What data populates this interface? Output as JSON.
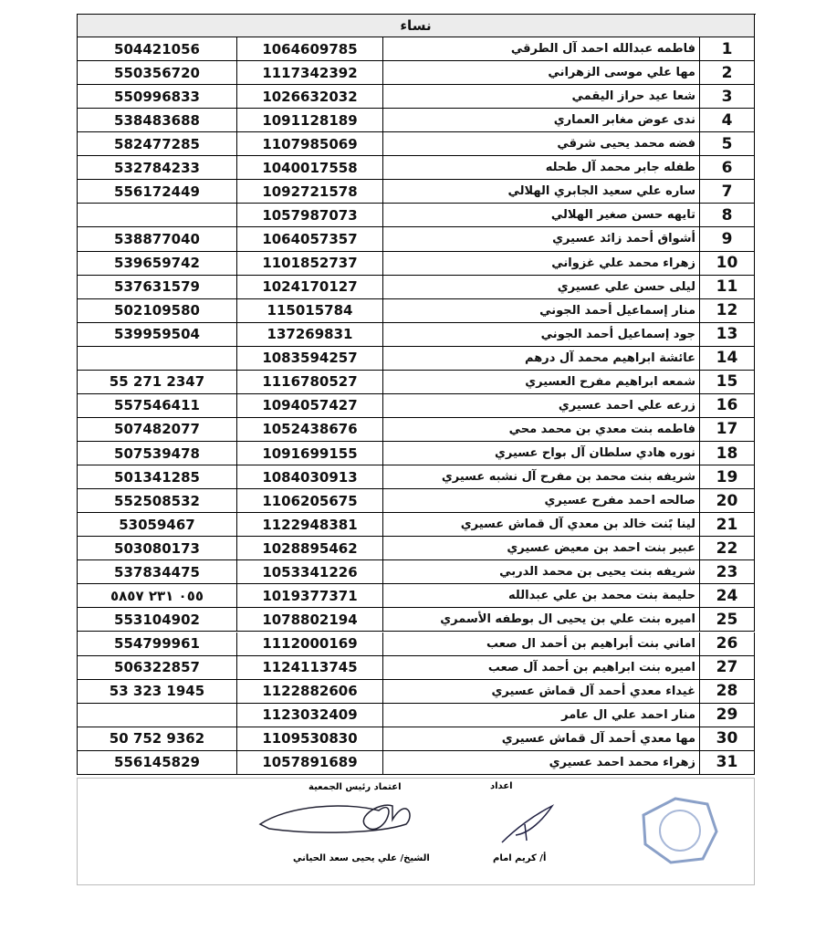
{
  "table": {
    "header": "نساء",
    "rows": [
      [
        1,
        "فاطمه عبدالله احمد آل الطرقي",
        "1064609785",
        "504421056"
      ],
      [
        2,
        "مها علي موسى الزهراني",
        "1117342392",
        "550356720"
      ],
      [
        3,
        "شعا عيد حراز اليقمي",
        "1026632032",
        "550996833"
      ],
      [
        4,
        "ندى عوض مغابر العماري",
        "1091128189",
        "538483688"
      ],
      [
        5,
        "فضه محمد يحيى شرقي",
        "1107985069",
        "582477285"
      ],
      [
        6,
        "طفله جابر محمد آل طحله",
        "1040017558",
        "532784233"
      ],
      [
        7,
        "ساره علي سعيد الجابري الهلالي",
        "1092721578",
        "556172449"
      ],
      [
        8,
        "تايهه حسن صغير الهلالي",
        "1057987073",
        null
      ],
      [
        9,
        "أشواق أحمد زائد عسيري",
        "1064057357",
        "538877040"
      ],
      [
        10,
        "زهراء محمد علي غزواني",
        "1101852737",
        "539659742"
      ],
      [
        11,
        "ليلى حسن علي عسيري",
        "1024170127",
        "537631579"
      ],
      [
        12,
        "منار إسماعيل أحمد الجوني",
        "115015784",
        "502109580"
      ],
      [
        13,
        "جود إسماعيل أحمد الجوني",
        "137269831",
        "539959504"
      ],
      [
        14,
        "عائشة ابراهيم محمد آل درهم",
        "1083594257",
        null
      ],
      [
        15,
        "شمعه ابراهيم مفرح العسيري",
        "1116780527",
        "55 271 2347"
      ],
      [
        16,
        "زرعه علي احمد عسيري",
        "1094057427",
        "557546411"
      ],
      [
        17,
        "فاطمه بنت معدي بن محمد محي",
        "1052438676",
        "507482077"
      ],
      [
        18,
        "نوره هادي سلطان آل بواح عسيري",
        "1091699155",
        "507539478"
      ],
      [
        19,
        "شريفه بنت محمد بن مفرح آل نشبه عسيري",
        "1084030913",
        "501341285"
      ],
      [
        20,
        "صالحه احمد مفرح عسيري",
        "1106205675",
        "552508532"
      ],
      [
        21,
        "لينا بًنت خالد بن معدي آل قماش عسيري",
        "1122948381",
        "53059467"
      ],
      [
        22,
        "عبير بنت احمد بن معيض عسيري",
        "1028895462",
        "503080173"
      ],
      [
        23,
        "شريفه بنت يحيى بن محمد الدربي",
        "1053341226",
        "537834475"
      ],
      [
        24,
        "حليمة بنت محمد بن علي عبدالله",
        "1019377371",
        "٠٥٥ ٢٣١ ٥٨٥٧"
      ],
      [
        25,
        "اميره بنت  علي بن يحيى ال بوطفه الأسمري",
        "1078802194",
        "553104902"
      ],
      [
        26,
        "اماني بنت أبراهيم بن أحمد ال صعب",
        "1112000169",
        "554799961"
      ],
      [
        27,
        "اميره بنت ابراهيم بن أحمد آل صعب",
        "1124113745",
        "506322857"
      ],
      [
        28,
        "غيداء معدي أحمد آل قماش عسيري",
        "1122882606",
        "53 323 1945"
      ],
      [
        29,
        "منار احمد علي ال عامر",
        "1123032409",
        null
      ],
      [
        30,
        "مها معدي أحمد آل قماش عسيري",
        "1109530830",
        "50 752 9362"
      ],
      [
        31,
        "زهراء محمد احمد عسيري",
        "1057891689",
        "556145829"
      ]
    ]
  },
  "footer": {
    "approval_label": "اعتماد رئيس الجمعية",
    "approver": "الشيخ/ علي يحيى سعد الحياني",
    "prepared_label": "اعداد",
    "preparer": "أ/ كريم امام"
  }
}
